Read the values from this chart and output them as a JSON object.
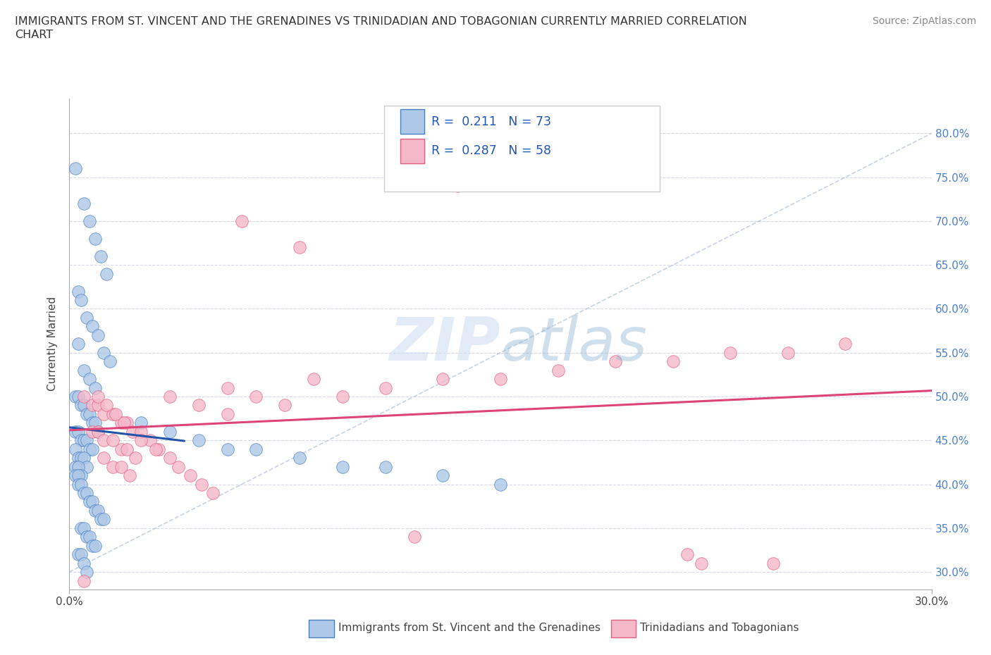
{
  "title_line1": "IMMIGRANTS FROM ST. VINCENT AND THE GRENADINES VS TRINIDADIAN AND TOBAGONIAN CURRENTLY MARRIED CORRELATION",
  "title_line2": "CHART",
  "source": "Source: ZipAtlas.com",
  "watermark": "ZIPatlas",
  "ylabel": "Currently Married",
  "xlim": [
    0.0,
    0.3
  ],
  "ylim": [
    0.28,
    0.84
  ],
  "y_ticks": [
    0.3,
    0.35,
    0.4,
    0.45,
    0.5,
    0.55,
    0.6,
    0.65,
    0.7,
    0.75,
    0.8
  ],
  "y_tick_labels_right": [
    "30.0%",
    "35.0%",
    "40.0%",
    "45.0%",
    "50.0%",
    "55.0%",
    "60.0%",
    "65.0%",
    "70.0%",
    "75.0%",
    "80.0%"
  ],
  "R_blue": "0.211",
  "N_blue": "73",
  "R_pink": "0.287",
  "N_pink": "58",
  "color_blue_fill": "#adc8e8",
  "color_pink_fill": "#f5b8ca",
  "color_blue_edge": "#4a7fc0",
  "color_pink_edge": "#e06080",
  "color_blue_line": "#2255aa",
  "color_pink_line": "#dd4477",
  "color_diagonal": "#b0c0d8",
  "legend_label_blue": "Immigrants from St. Vincent and the Grenadines",
  "legend_label_pink": "Trinidadians and Tobagonians",
  "grid_color": "#d8d8e8",
  "grid_style": "--"
}
